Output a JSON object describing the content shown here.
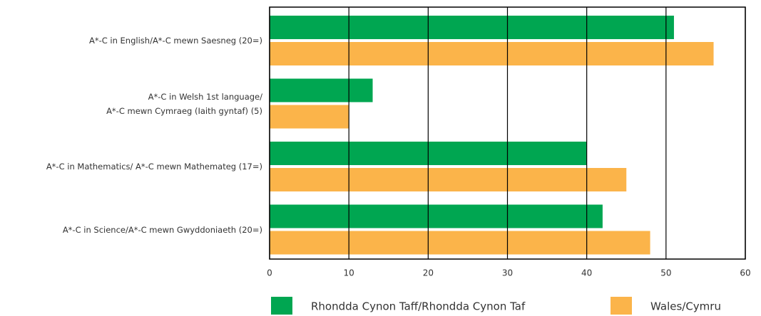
{
  "chart_data": {
    "type": "bar",
    "orientation": "horizontal",
    "categories": [
      "A*-C in English/A*-C mewn Saesneg (20=)",
      "A*-C in Welsh 1st language/\nA*-C mewn Cymraeg (Iaith gyntaf) (5)",
      "A*-C in Mathematics/ A*-C mewn Mathemateg (17=)",
      "A*-C in Science/A*-C mewn Gwyddoniaeth (20=)"
    ],
    "series": [
      {
        "name": "Rhondda Cynon Taff/Rhondda Cynon Taf",
        "color": "#00a651",
        "values": [
          51,
          13,
          40,
          42
        ]
      },
      {
        "name": "Wales/Cymru",
        "color": "#fbb44a",
        "values": [
          56,
          10,
          45,
          48
        ]
      }
    ],
    "xlim": [
      0,
      60
    ],
    "xticks": [
      0,
      10,
      20,
      30,
      40,
      50,
      60
    ],
    "grid": true,
    "legend": "bottom"
  }
}
